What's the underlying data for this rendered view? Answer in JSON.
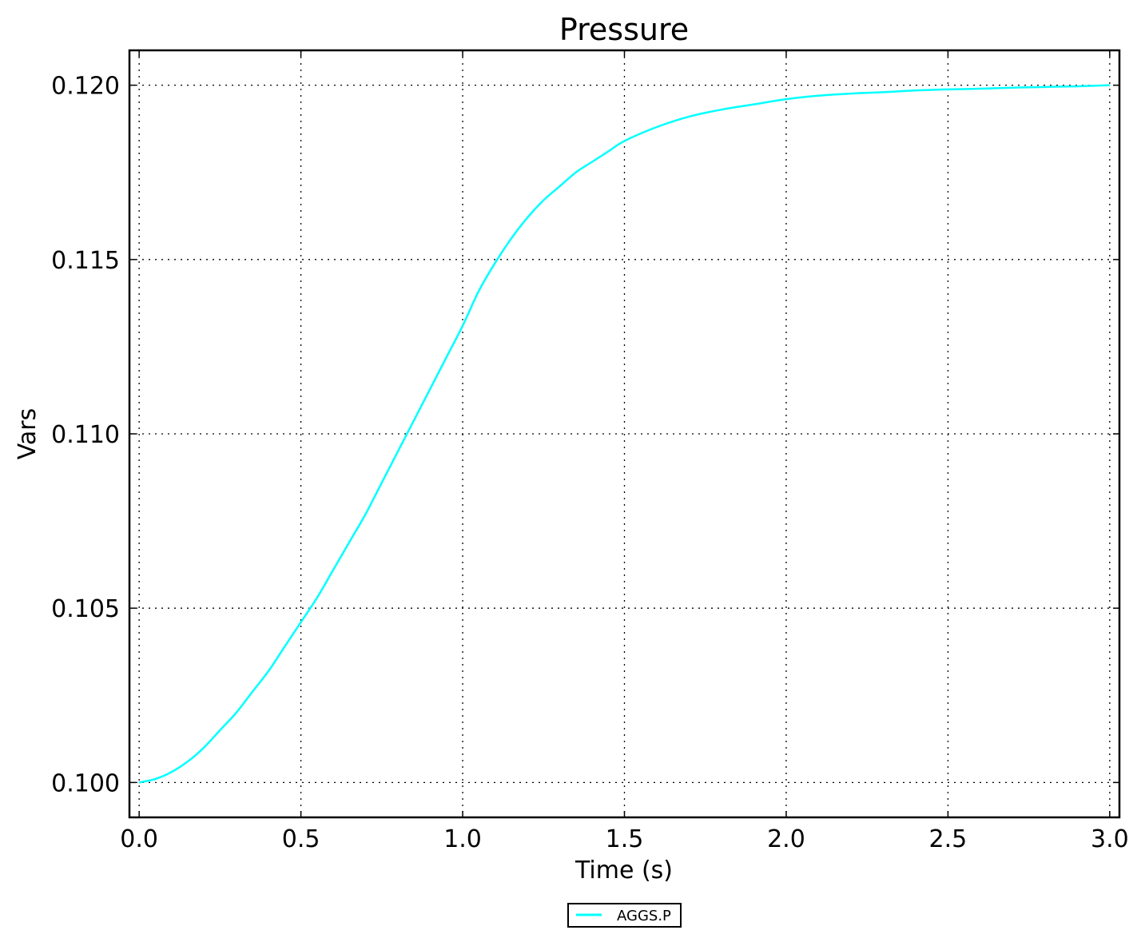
{
  "chart_data": {
    "type": "line",
    "title": "Pressure",
    "xlabel": "Time (s)",
    "ylabel": "Vars",
    "xlim": [
      -0.03,
      3.03
    ],
    "ylim": [
      0.099,
      0.121
    ],
    "x_ticks": [
      0.0,
      0.5,
      1.0,
      1.5,
      2.0,
      2.5,
      3.0
    ],
    "x_tick_labels": [
      "0.0",
      "0.5",
      "1.0",
      "1.5",
      "2.0",
      "2.5",
      "3.0"
    ],
    "y_ticks": [
      0.1,
      0.105,
      0.11,
      0.115,
      0.12
    ],
    "y_tick_labels": [
      "0.100",
      "0.105",
      "0.110",
      "0.115",
      "0.120"
    ],
    "grid": true,
    "legend_position": "bottom-center, below plot",
    "series": [
      {
        "name": "AGGS.P",
        "color": "#00ffff",
        "x": [
          0.0,
          0.05,
          0.1,
          0.15,
          0.2,
          0.25,
          0.3,
          0.35,
          0.4,
          0.45,
          0.5,
          0.55,
          0.6,
          0.65,
          0.7,
          0.75,
          0.8,
          0.85,
          0.9,
          0.95,
          1.0,
          1.05,
          1.1,
          1.15,
          1.2,
          1.25,
          1.3,
          1.35,
          1.4,
          1.45,
          1.5,
          1.6,
          1.7,
          1.8,
          1.9,
          2.0,
          2.1,
          2.2,
          2.3,
          2.4,
          2.5,
          2.6,
          2.7,
          2.8,
          2.9,
          3.0
        ],
        "y": [
          0.1,
          0.1001,
          0.1003,
          0.1006,
          0.101,
          0.1015,
          0.102,
          0.1026,
          0.1032,
          0.1039,
          0.1046,
          0.1053,
          0.1061,
          0.1069,
          0.1077,
          0.1086,
          0.1095,
          0.1104,
          0.1113,
          0.1122,
          0.1131,
          0.1141,
          0.1149,
          0.1156,
          0.1162,
          0.1167,
          0.1171,
          0.1175,
          0.1178,
          0.1181,
          0.1184,
          0.1188,
          0.1191,
          0.1193,
          0.11945,
          0.1196,
          0.1197,
          0.11976,
          0.1198,
          0.11985,
          0.11988,
          0.1199,
          0.11993,
          0.11995,
          0.11997,
          0.12
        ]
      }
    ]
  }
}
